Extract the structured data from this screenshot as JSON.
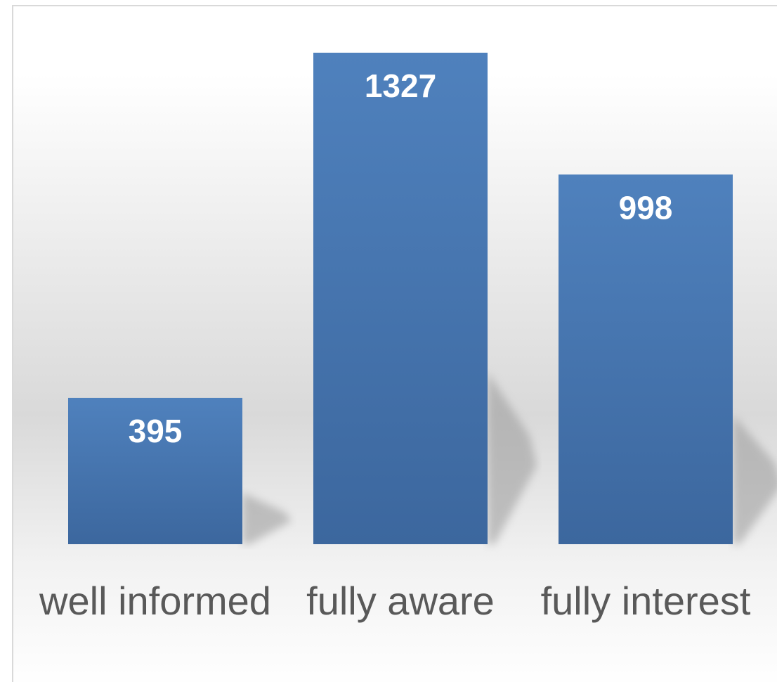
{
  "chart_data": {
    "type": "bar",
    "categories": [
      "well informed",
      "fully aware",
      "fully interest"
    ],
    "values": [
      395,
      1327,
      998
    ],
    "color": "#4a7ebb",
    "ylim": [
      0,
      1400
    ]
  }
}
